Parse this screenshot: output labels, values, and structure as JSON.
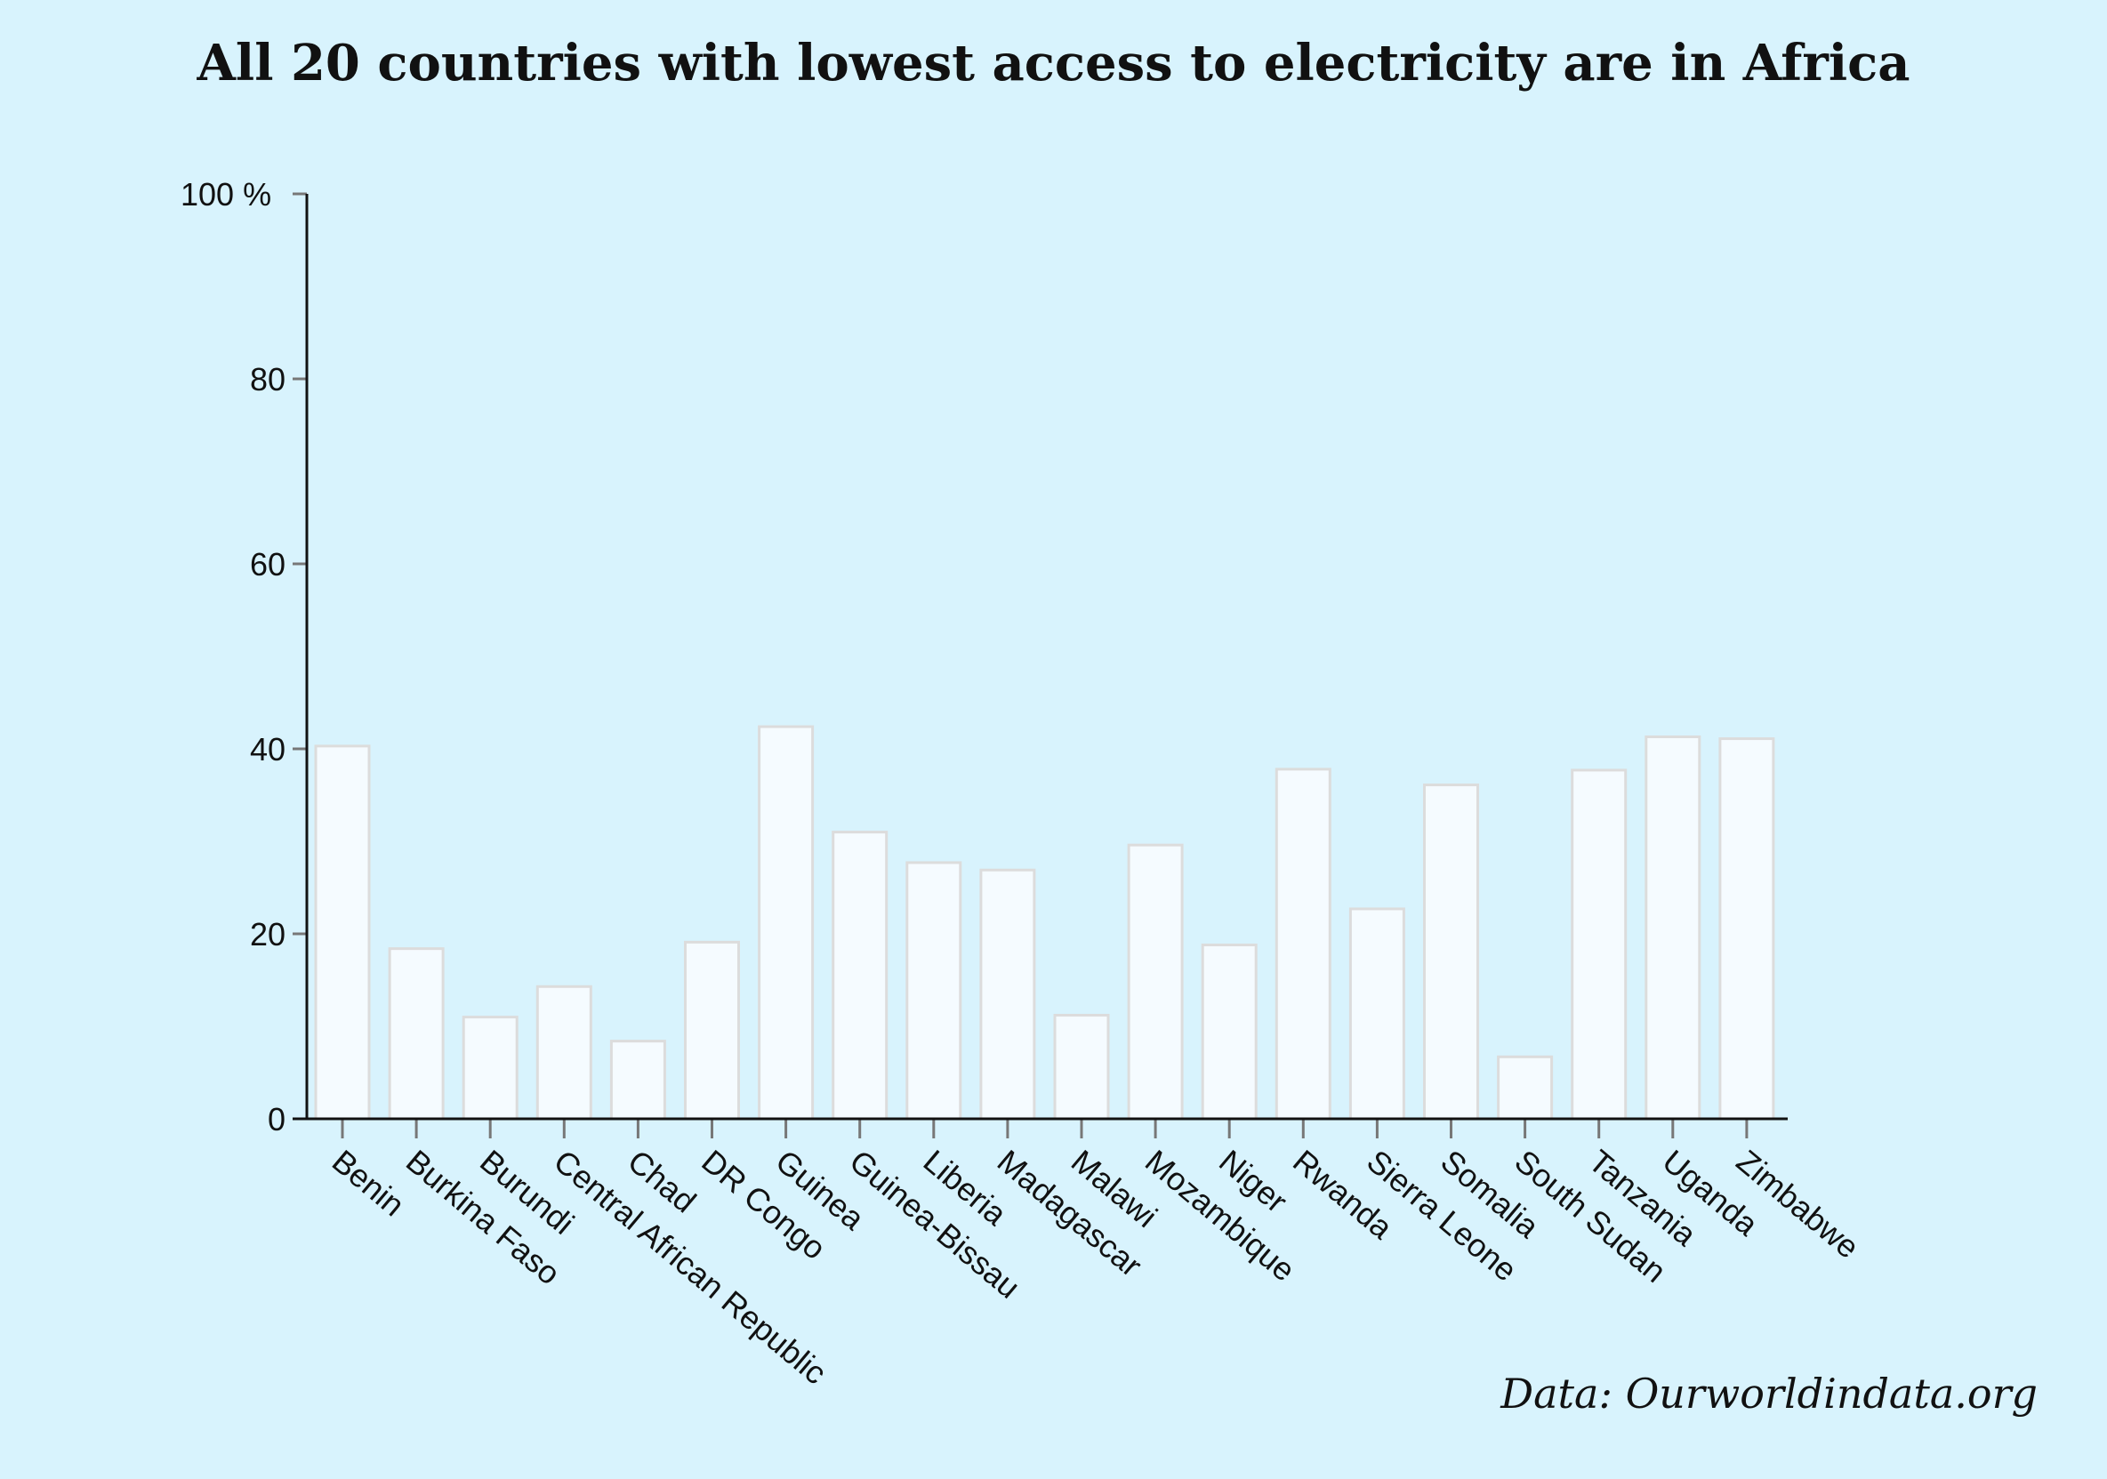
{
  "chart_data": {
    "type": "bar",
    "title": "All 20 countries with lowest access to electricity are in Africa",
    "source": "Data: Ourworldindata.org",
    "categories": [
      "Benin",
      "Burkina Faso",
      "Burundi",
      "Central African Republic",
      "Chad",
      "DR Congo",
      "Guinea",
      "Guinea-Bissau",
      "Liberia",
      "Madagascar",
      "Malawi",
      "Mozambique",
      "Niger",
      "Rwanda",
      "Sierra Leone",
      "Somalia",
      "South Sudan",
      "Tanzania",
      "Uganda",
      "Zimbabwe"
    ],
    "values": [
      40.3,
      18.4,
      11.0,
      14.3,
      8.4,
      19.1,
      42.4,
      31.0,
      27.7,
      26.9,
      11.2,
      29.6,
      18.8,
      37.8,
      22.7,
      36.1,
      6.7,
      37.7,
      41.3,
      41.1
    ],
    "xlabel": "",
    "ylabel": "",
    "ylim": [
      0,
      100
    ],
    "yticks": [
      0,
      20,
      40,
      60,
      80,
      100
    ],
    "ytick_labels": [
      "0",
      "20",
      "40",
      "60",
      "80",
      "100 %"
    ],
    "grid": false,
    "legend": "none",
    "colors": {
      "background": "#d8f3fd",
      "bar_fill": "#f5fbff",
      "bar_stroke": "#dcdcdc",
      "axis": "#111111",
      "tick": "#777777"
    }
  }
}
